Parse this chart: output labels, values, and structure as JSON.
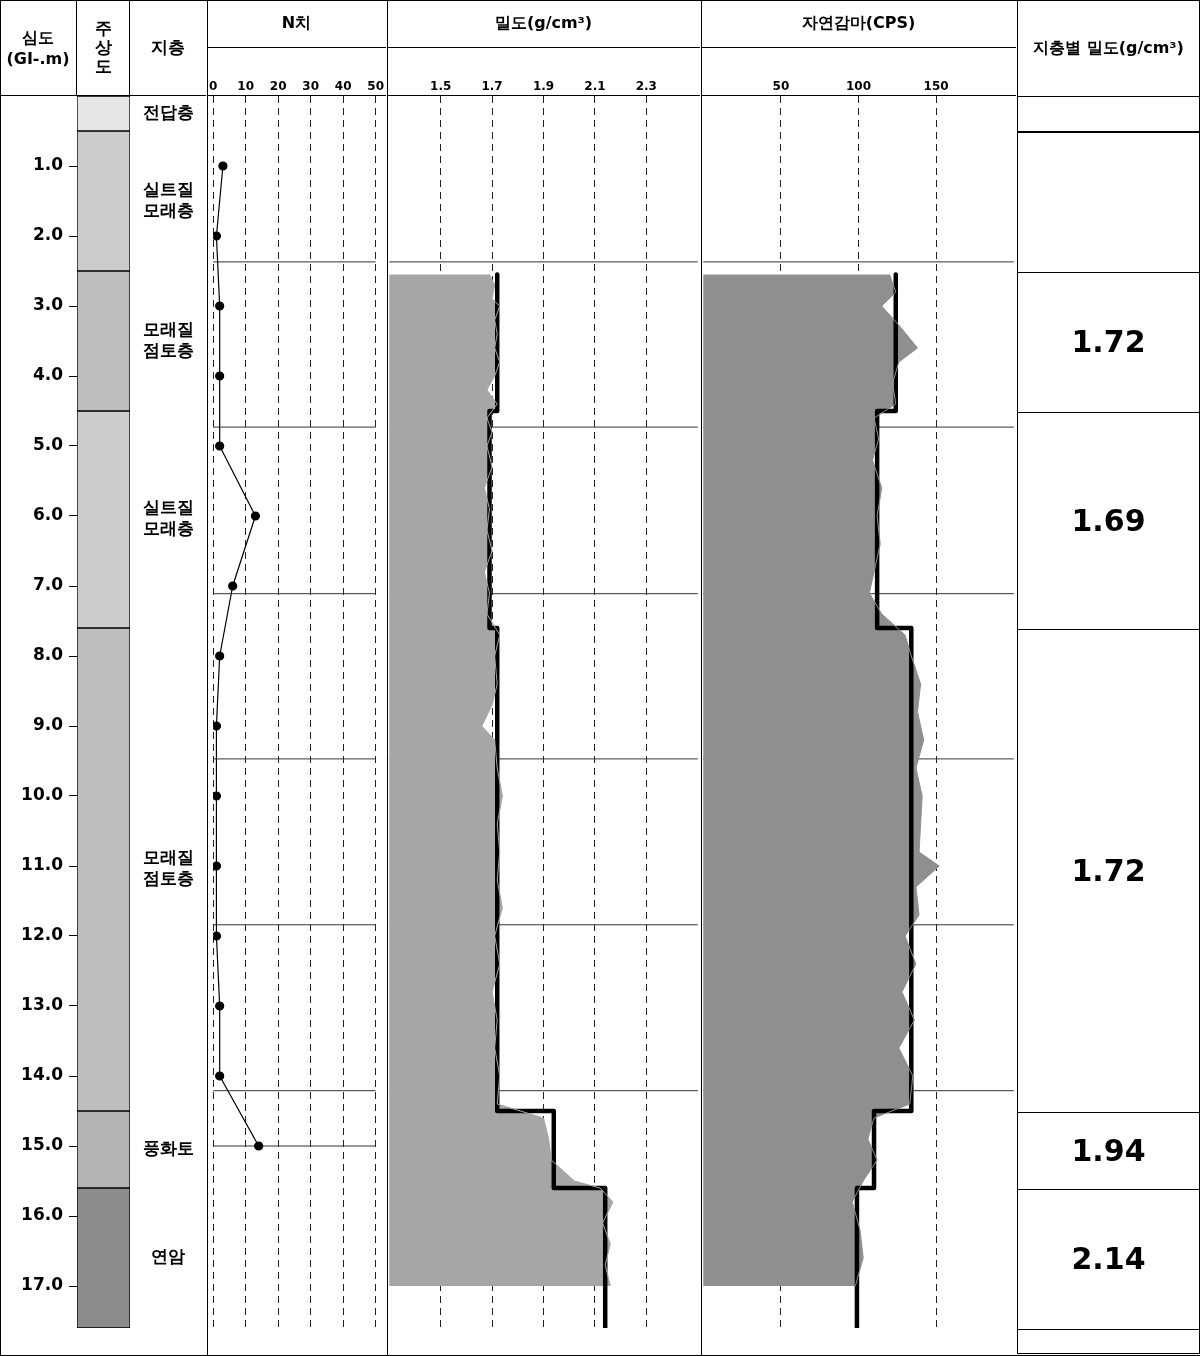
{
  "chart_data": [
    {
      "type": "bar",
      "stacked": true,
      "title": "주상도",
      "ylabel": "심도 (GI-.m)",
      "legend_title": "지층",
      "categories": [
        null
      ],
      "tick_labels": "y",
      "annotations": [
        "지층별 밀도(g/cm³)",
        "1.72",
        "1.69",
        "1.72",
        "1.94",
        "2.14"
      ],
      "ylim": [
        17.6,
        0
      ],
      "yticks": [
        {
          "value": 1,
          "label": "1.0"
        },
        {
          "value": 2,
          "label": "2.0"
        },
        {
          "value": 3,
          "label": "3.0"
        },
        {
          "value": 4,
          "label": "4.0"
        },
        {
          "value": 5,
          "label": "5.0"
        },
        {
          "value": 6,
          "label": "6.0"
        },
        {
          "value": 7,
          "label": "7.0"
        },
        {
          "value": 8,
          "label": "8.0"
        },
        {
          "value": 9,
          "label": "9.0"
        },
        {
          "value": 10,
          "label": "10.0"
        },
        {
          "value": 11,
          "label": "11.0"
        },
        {
          "value": 12,
          "label": "12.0"
        },
        {
          "value": 13,
          "label": "13.0"
        },
        {
          "value": 14,
          "label": "14.0"
        },
        {
          "value": 15,
          "label": "15.0"
        },
        {
          "value": 16,
          "label": "16.0"
        },
        {
          "value": 17,
          "label": "17.0"
        }
      ],
      "series": [
        {
          "name": "전답층",
          "color": "#e6e6e6",
          "values": [
            0.5
          ]
        },
        {
          "name": "실트질 모래층",
          "color": "#cccccc",
          "values": [
            2.0
          ]
        },
        {
          "name": "모래질 점토층",
          "color": "#bdbdbd",
          "values": [
            2.0
          ]
        },
        {
          "name": "실트질 모래층",
          "color": "#cccccc",
          "values": [
            3.1
          ]
        },
        {
          "name": "모래질 점토층",
          "color": "#bdbdbd",
          "values": [
            6.9
          ]
        },
        {
          "name": "풍화토",
          "color": "#b3b3b3",
          "values": [
            1.1
          ]
        },
        {
          "name": "연암",
          "color": "#8c8c8c",
          "values": [
            2.0
          ]
        }
      ]
    },
    {
      "type": "line",
      "orientation": "horizontal",
      "title": "N치",
      "xlim": [
        0,
        50
      ],
      "xticks": [
        0,
        10,
        20,
        30,
        40,
        50
      ],
      "ylim": [
        17.6,
        0
      ],
      "grid": "x",
      "tick_labels": "x",
      "marker": "circle",
      "ref_lines": [
        {
          "axis": "y",
          "value": 2.37
        },
        {
          "axis": "y",
          "value": 4.73
        },
        {
          "axis": "y",
          "value": 7.11
        },
        {
          "axis": "y",
          "value": 9.47
        },
        {
          "axis": "y",
          "value": 11.84
        },
        {
          "axis": "y",
          "value": 14.21
        },
        {
          "axis": "y",
          "value": 15.0
        }
      ],
      "series": [
        {
          "color": "#000000",
          "values": [
            3,
            1,
            2,
            2,
            2,
            13,
            6,
            2,
            1,
            1,
            1,
            1,
            2,
            2,
            14
          ],
          "x": [
            1,
            2,
            3,
            4,
            5,
            6,
            7,
            8,
            9,
            10,
            11,
            12,
            13,
            14,
            15
          ]
        }
      ]
    },
    {
      "type": "line",
      "orientation": "horizontal",
      "title": "밀도(g/cm³)",
      "xlim": [
        1.3,
        2.5
      ],
      "xticks": [
        1.5,
        1.7,
        1.9,
        2.1,
        2.3
      ],
      "ylim": [
        17.6,
        0
      ],
      "grid": "x",
      "tick_labels": "x",
      "ref_lines": [
        {
          "axis": "y",
          "value": 2.37
        },
        {
          "axis": "y",
          "value": 4.73
        },
        {
          "axis": "y",
          "value": 7.11
        },
        {
          "axis": "y",
          "value": 9.47
        },
        {
          "axis": "y",
          "value": 11.84
        },
        {
          "axis": "y",
          "value": 14.21
        }
      ],
      "series": [
        {
          "type": "area",
          "color": "#a6a6a6",
          "values": [
            1.69,
            1.71,
            1.7,
            1.73,
            1.71,
            1.72,
            1.71,
            1.73,
            1.71,
            1.68,
            1.72,
            1.68,
            1.7,
            1.68,
            1.7,
            1.67,
            1.69,
            1.68,
            1.7,
            1.67,
            1.69,
            1.68,
            1.73,
            1.71,
            1.72,
            1.7,
            1.66,
            1.71,
            1.72,
            1.74,
            1.72,
            1.73,
            1.72,
            1.74,
            1.71,
            1.73,
            1.7,
            1.72,
            1.71,
            1.73,
            1.72,
            1.9,
            1.92,
            1.93,
            2.02,
            2.12,
            2.17,
            2.13,
            2.16,
            2.14,
            2.16
          ],
          "x": [
            2.55,
            2.7,
            2.9,
            3.0,
            3.2,
            3.4,
            3.6,
            3.8,
            4.0,
            4.2,
            4.4,
            4.6,
            4.8,
            5.0,
            5.3,
            5.6,
            5.9,
            6.2,
            6.5,
            6.8,
            7.1,
            7.4,
            7.7,
            8.0,
            8.4,
            8.7,
            9.0,
            9.2,
            9.6,
            10.0,
            10.4,
            10.8,
            11.2,
            11.6,
            12.0,
            12.4,
            12.8,
            13.2,
            13.6,
            14.0,
            14.4,
            14.6,
            14.9,
            15.2,
            15.5,
            15.6,
            15.8,
            16.1,
            16.4,
            16.7,
            17.0
          ]
        },
        {
          "type": "step",
          "color": "#000000",
          "values": [
            1.72,
            1.72,
            1.69,
            1.69,
            1.72,
            1.72,
            1.94,
            1.94,
            2.14,
            2.14
          ],
          "x": [
            2.55,
            4.5,
            4.5,
            7.6,
            7.6,
            14.5,
            14.5,
            15.6,
            15.6,
            17.6
          ]
        }
      ]
    },
    {
      "type": "line",
      "orientation": "horizontal",
      "title": "자연감마(CPS)",
      "xlim": [
        0,
        200
      ],
      "xticks": [
        50,
        100,
        150
      ],
      "ylim": [
        17.6,
        0
      ],
      "grid": "x",
      "tick_labels": "x",
      "ref_lines": [
        {
          "axis": "y",
          "value": 2.37
        },
        {
          "axis": "y",
          "value": 4.73
        },
        {
          "axis": "y",
          "value": 7.11
        },
        {
          "axis": "y",
          "value": 9.47
        },
        {
          "axis": "y",
          "value": 11.84
        },
        {
          "axis": "y",
          "value": 14.21
        }
      ],
      "series": [
        {
          "type": "area",
          "color": "#8f8f8f",
          "values": [
            120,
            124,
            115,
            127,
            138,
            126,
            122,
            124,
            110,
            113,
            109,
            115,
            112,
            114,
            110,
            107,
            115,
            130,
            134,
            140,
            138,
            142,
            137,
            141,
            140,
            139,
            152,
            137,
            139,
            130,
            137,
            128,
            136,
            126,
            135,
            133,
            110,
            106,
            112,
            103,
            96,
            101,
            103,
            98
          ],
          "x": [
            2.55,
            2.8,
            3.0,
            3.3,
            3.6,
            3.8,
            4.1,
            4.4,
            4.6,
            4.9,
            5.2,
            5.6,
            6.0,
            6.4,
            6.8,
            7.1,
            7.4,
            7.7,
            8.0,
            8.4,
            8.8,
            9.2,
            9.6,
            10.0,
            10.4,
            10.8,
            11.0,
            11.3,
            11.7,
            12.0,
            12.4,
            12.8,
            13.2,
            13.6,
            14.0,
            14.4,
            14.6,
            14.9,
            15.2,
            15.5,
            15.8,
            16.2,
            16.6,
            17.0
          ]
        },
        {
          "type": "step",
          "color": "#000000",
          "values": [
            124,
            124,
            112,
            112,
            134,
            134,
            110,
            110,
            99,
            99
          ],
          "x": [
            2.55,
            4.5,
            4.5,
            7.6,
            7.6,
            14.5,
            14.5,
            15.6,
            15.6,
            17.6
          ]
        }
      ]
    }
  ]
}
